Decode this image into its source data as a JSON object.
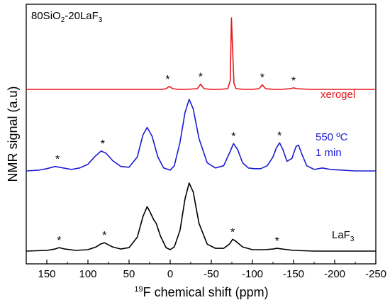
{
  "chart_data": {
    "type": "line",
    "title": "80SiO2-20LaF3",
    "title_parts": {
      "a": "80SiO",
      "b": "2",
      "c": "-20LaF",
      "d": "3"
    },
    "xlabel": "19F chemical shift (ppm)",
    "xlabel_parts": {
      "sup": "19",
      "rest": "F chemical shift (ppm)"
    },
    "ylabel": "NMR signal (a.u)",
    "xlim": [
      175,
      -250
    ],
    "x_reversed": true,
    "xticks": [
      150,
      100,
      50,
      0,
      -50,
      -100,
      -150,
      -200,
      -250
    ],
    "xtick_labels": [
      "150",
      "100",
      "50",
      "0",
      "-50",
      "-100",
      "-150",
      "-200",
      "-250"
    ],
    "yticks_shown": false,
    "grid": false,
    "series": [
      {
        "name": "xerogel",
        "color": "#e8161b",
        "label_lines": [
          "xerogel"
        ],
        "x": [
          175,
          140,
          100,
          60,
          30,
          10,
          5,
          1,
          -3,
          -10,
          -20,
          -33,
          -37,
          -41,
          -50,
          -60,
          -70,
          -73,
          -74.5,
          -76,
          -77.5,
          -80,
          -90,
          -100,
          -108,
          -112,
          -116,
          -125,
          -135,
          -146,
          -150,
          -154,
          -170,
          -200,
          -250
        ],
        "y": [
          0,
          0,
          0,
          0,
          0,
          0,
          0.01,
          0.04,
          0.01,
          0,
          0,
          0.01,
          0.07,
          0.01,
          0,
          0,
          0.01,
          0.12,
          0.96,
          0.5,
          0.08,
          0.01,
          0,
          0,
          0.01,
          0.06,
          0.01,
          0,
          0,
          0.01,
          0.02,
          0.01,
          0,
          0,
          0
        ],
        "spinning_sidebands": [
          3,
          -37,
          -112,
          -150
        ]
      },
      {
        "name": "550 ºC 1 min",
        "color": "#1b1bd4",
        "label_lines": [
          "550 ºC",
          "1 min"
        ],
        "x": [
          175,
          160,
          150,
          140,
          130,
          120,
          110,
          100,
          92,
          84,
          78,
          70,
          60,
          50,
          40,
          33,
          28,
          22,
          15,
          8,
          0,
          -5,
          -12,
          -18,
          -23,
          -28,
          -35,
          -45,
          -55,
          -65,
          -72,
          -77,
          -82,
          -88,
          -95,
          -102,
          -110,
          -118,
          -125,
          -129,
          -133,
          -137,
          -142,
          -148,
          -153,
          -156,
          -160,
          -166,
          -175,
          -185,
          -195,
          -210,
          -225,
          -250
        ],
        "y": [
          0.01,
          0.02,
          0.04,
          0.07,
          0.05,
          0.03,
          0.05,
          0.1,
          0.2,
          0.28,
          0.25,
          0.15,
          0.07,
          0.06,
          0.2,
          0.5,
          0.6,
          0.48,
          0.2,
          0.05,
          0.02,
          0.08,
          0.4,
          0.8,
          0.98,
          0.85,
          0.45,
          0.12,
          0.05,
          0.08,
          0.25,
          0.38,
          0.3,
          0.12,
          0.05,
          0.04,
          0.04,
          0.08,
          0.2,
          0.32,
          0.39,
          0.3,
          0.14,
          0.18,
          0.34,
          0.36,
          0.24,
          0.08,
          0.03,
          0.05,
          0.03,
          0.02,
          0.01,
          0.01
        ]
      },
      {
        "name": "LaF3",
        "color": "#000000",
        "label_lines": [
          "LaF3"
        ],
        "label_parts": {
          "a": "LaF",
          "b": "3"
        },
        "x": [
          175,
          150,
          140,
          135,
          128,
          115,
          100,
          90,
          85,
          80,
          75,
          70,
          60,
          50,
          40,
          33,
          28,
          24,
          20,
          17,
          12,
          5,
          0,
          -5,
          -12,
          -18,
          -23,
          -28,
          -35,
          -45,
          -55,
          -65,
          -72,
          -76,
          -80,
          -88,
          -100,
          -115,
          -125,
          -130,
          -136,
          -150,
          -175,
          -200,
          -250
        ],
        "y": [
          0,
          0.01,
          0.03,
          0.05,
          0.03,
          0.01,
          0.02,
          0.06,
          0.1,
          0.12,
          0.09,
          0.06,
          0.03,
          0.05,
          0.2,
          0.5,
          0.64,
          0.55,
          0.45,
          0.4,
          0.22,
          0.05,
          0.02,
          0.06,
          0.3,
          0.75,
          0.98,
          0.85,
          0.4,
          0.1,
          0.04,
          0.04,
          0.1,
          0.17,
          0.14,
          0.06,
          0.02,
          0.02,
          0.03,
          0.04,
          0.03,
          0.01,
          0,
          0,
          0
        ]
      }
    ],
    "sideband_marker": "*",
    "sideband_markers": [
      {
        "series": 0,
        "x": 3,
        "y": 0.04
      },
      {
        "series": 0,
        "x": -37,
        "y": 0.07
      },
      {
        "series": 0,
        "x": -112,
        "y": 0.06
      },
      {
        "series": 0,
        "x": -150,
        "y": 0.02
      },
      {
        "series": 1,
        "x": 137,
        "y": 0.07
      },
      {
        "series": 1,
        "x": 82,
        "y": 0.28
      },
      {
        "series": 1,
        "x": -77,
        "y": 0.38
      },
      {
        "series": 1,
        "x": -133,
        "y": 0.39
      },
      {
        "series": 2,
        "x": 135,
        "y": 0.05
      },
      {
        "series": 2,
        "x": 80,
        "y": 0.12
      },
      {
        "series": 2,
        "x": -76,
        "y": 0.17
      },
      {
        "series": 2,
        "x": -130,
        "y": 0.04
      }
    ]
  }
}
